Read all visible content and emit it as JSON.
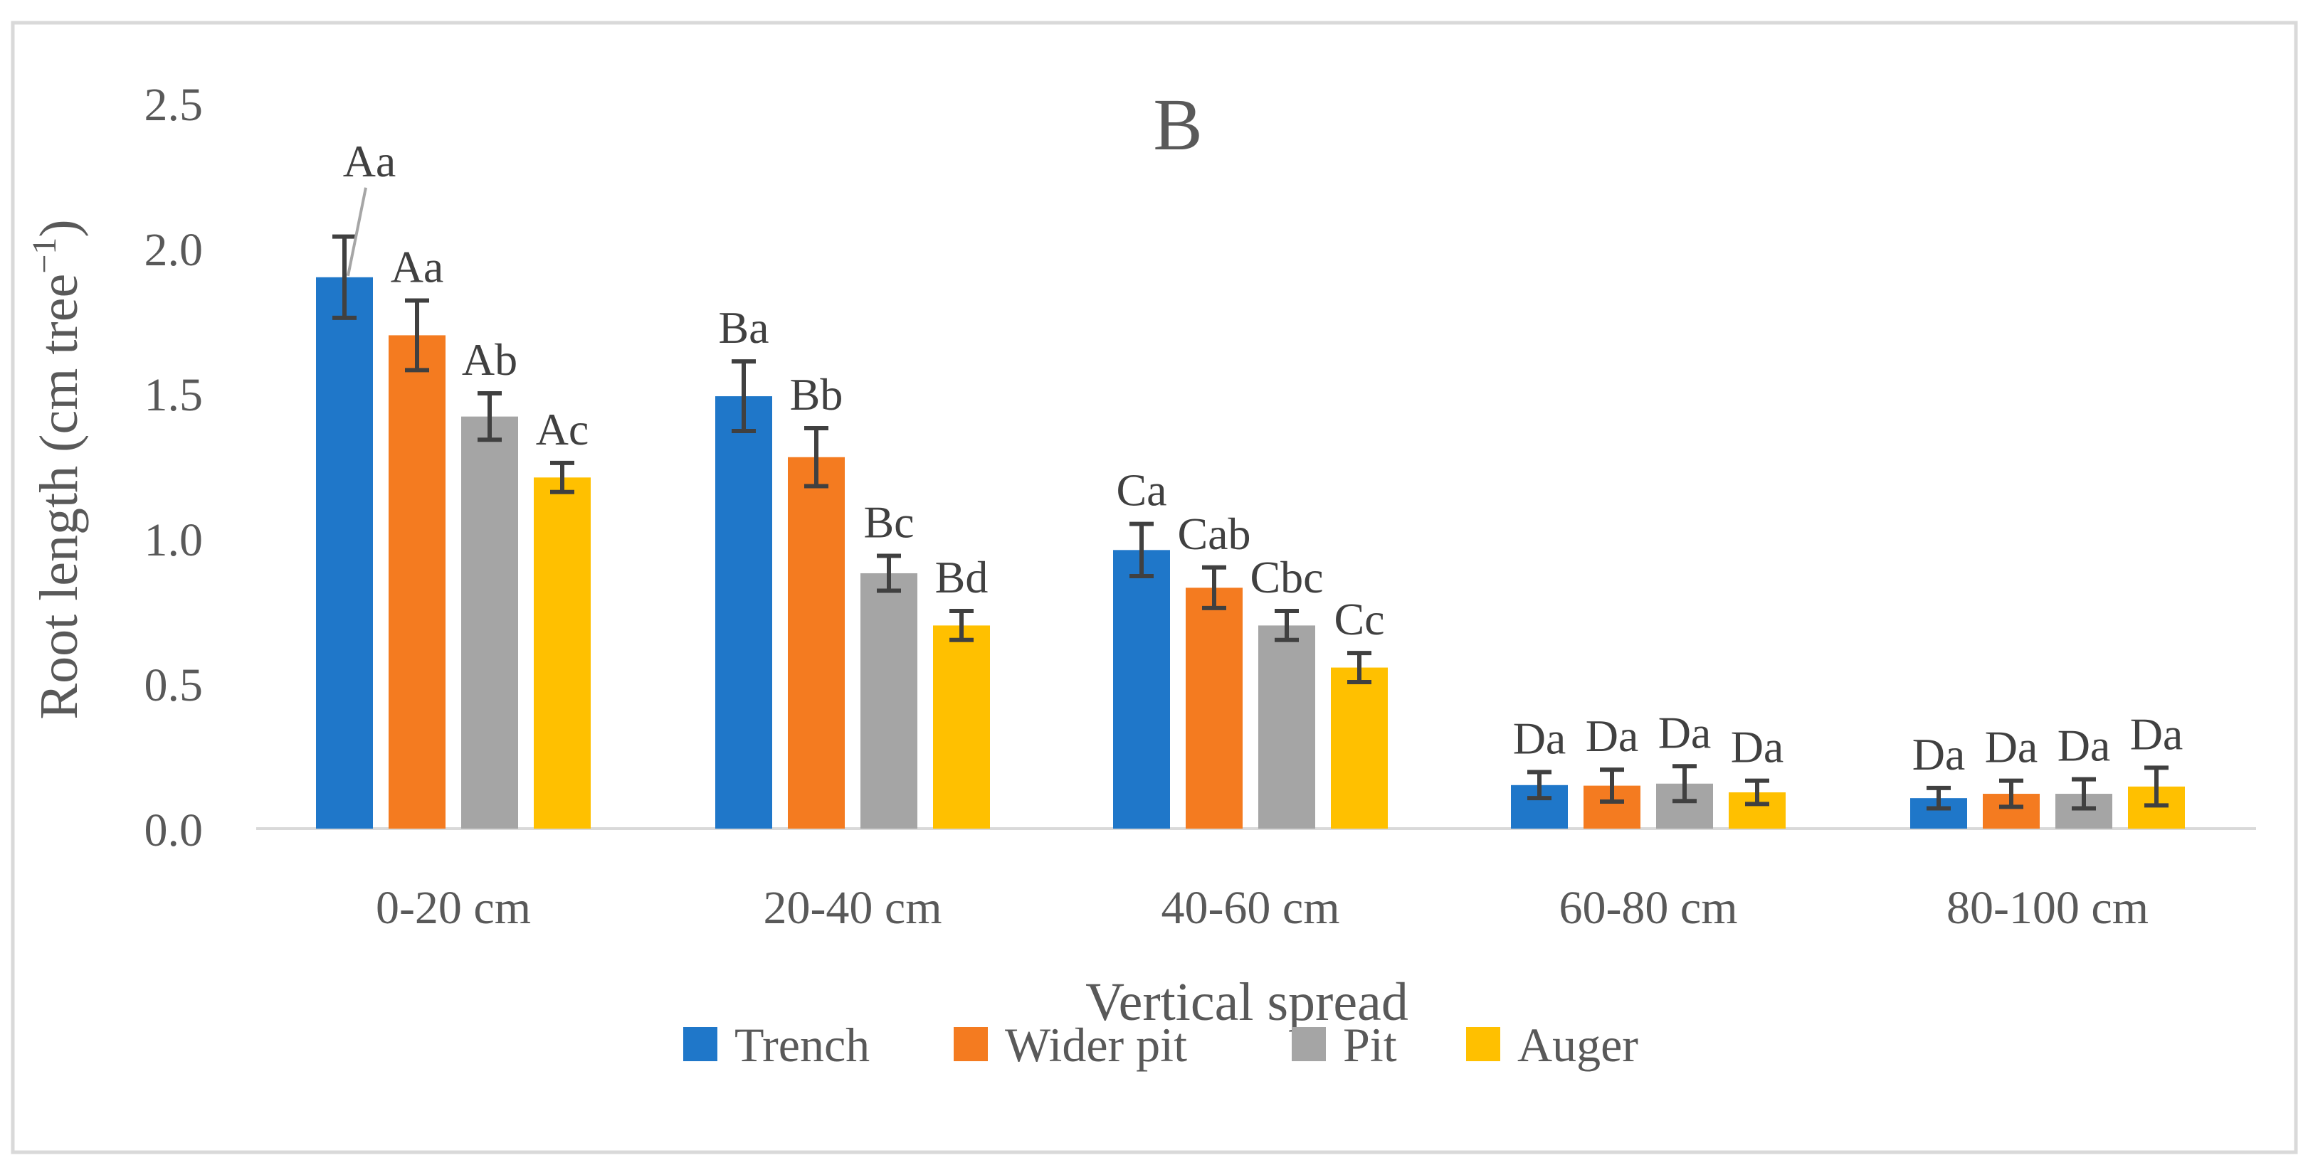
{
  "colors": {
    "axis_text": "#595959",
    "label_text": "#404040",
    "error_bar": "#404040",
    "frame": "#d9d9d9",
    "baseline": "#d9d9d9"
  },
  "chart_data": {
    "type": "bar",
    "title": "B",
    "xlabel": "Vertical spread",
    "ylabel": "Root length (cm tree",
    "ylabel_superscript": "−1",
    "ylabel_close": ")",
    "ylim": [
      0,
      2.5
    ],
    "yticks": [
      "0.0",
      "0.5",
      "1.0",
      "1.5",
      "2.0",
      "2.5"
    ],
    "ytick_values": [
      0,
      0.5,
      1.0,
      1.5,
      2.0,
      2.5
    ],
    "grid": false,
    "legend_position": "bottom",
    "categories": [
      "0-20 cm",
      "20-40 cm",
      "40-60 cm",
      "60-80 cm",
      "80-100 cm"
    ],
    "series": [
      {
        "name": "Trench",
        "color": "#1f77c9",
        "values": [
          1.9,
          1.49,
          0.96,
          0.15,
          0.105
        ],
        "errors": [
          0.14,
          0.12,
          0.09,
          0.045,
          0.035
        ],
        "labels": [
          "Aa",
          "Ba",
          "Ca",
          "Da",
          "Da"
        ]
      },
      {
        "name": "Wider pit",
        "color": "#f47b20",
        "values": [
          1.7,
          1.28,
          0.83,
          0.148,
          0.12
        ],
        "errors": [
          0.12,
          0.1,
          0.07,
          0.055,
          0.045
        ],
        "labels": [
          "Aa",
          "Bb",
          "Cab",
          "Da",
          "Da"
        ]
      },
      {
        "name": "Pit",
        "color": "#a5a5a5",
        "values": [
          1.42,
          0.88,
          0.7,
          0.155,
          0.12
        ],
        "errors": [
          0.08,
          0.06,
          0.05,
          0.06,
          0.05
        ],
        "labels": [
          "Ab",
          "Bc",
          "Cbc",
          "Da",
          "Da"
        ]
      },
      {
        "name": "Auger",
        "color": "#ffc000",
        "values": [
          1.21,
          0.7,
          0.555,
          0.125,
          0.145
        ],
        "errors": [
          0.05,
          0.05,
          0.05,
          0.04,
          0.065
        ],
        "labels": [
          "Ac",
          "Bd",
          "Cc",
          "Da",
          "Da"
        ]
      }
    ]
  }
}
